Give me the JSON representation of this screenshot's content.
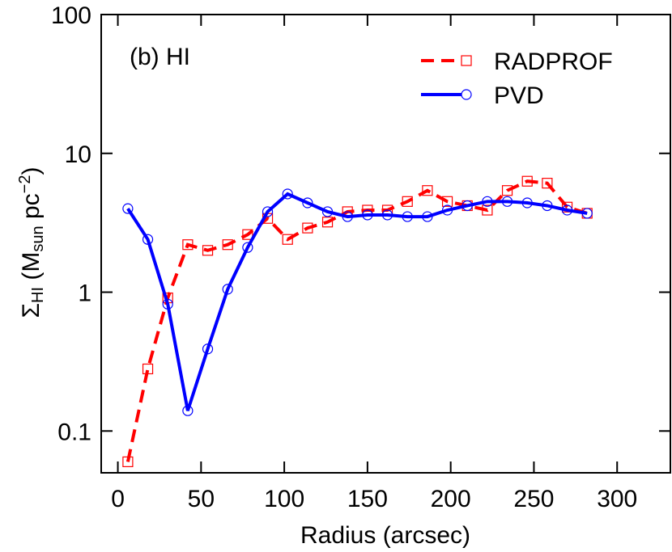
{
  "chart_data": {
    "type": "line",
    "annotation": "(b) HI",
    "x_label": "Radius (arcsec)",
    "y_label": [
      "Σ",
      "HI",
      " (M",
      "sun",
      " pc",
      "−2",
      ")"
    ],
    "x": [
      6,
      18,
      30,
      42,
      54,
      66,
      78,
      90,
      102,
      114,
      126,
      138,
      150,
      162,
      174,
      186,
      198,
      210,
      222,
      234,
      246,
      258,
      270,
      282
    ],
    "series": [
      {
        "name": "RADPROF",
        "color": "#ff0000",
        "dash": true,
        "marker": "square",
        "values": [
          0.06,
          0.28,
          0.91,
          2.2,
          2.0,
          2.2,
          2.6,
          3.4,
          2.4,
          2.9,
          3.2,
          3.8,
          3.9,
          3.9,
          4.5,
          5.4,
          4.5,
          4.2,
          3.9,
          5.4,
          6.3,
          6.1,
          4.1,
          3.7
        ]
      },
      {
        "name": "PVD",
        "color": "#0000ff",
        "dash": false,
        "marker": "circle",
        "values": [
          4.0,
          2.4,
          0.82,
          0.14,
          0.39,
          1.05,
          2.1,
          3.8,
          5.1,
          4.4,
          3.8,
          3.5,
          3.6,
          3.6,
          3.5,
          3.5,
          3.9,
          4.2,
          4.5,
          4.5,
          4.4,
          4.2,
          3.9,
          3.7
        ]
      }
    ],
    "xlim": [
      -10,
      332
    ],
    "xticks": [
      0,
      50,
      100,
      150,
      200,
      250,
      300
    ],
    "ylim": [
      0.05,
      100
    ],
    "yticks": [
      0.1,
      1,
      10,
      100
    ],
    "log_y": true,
    "legend": "top-right"
  }
}
